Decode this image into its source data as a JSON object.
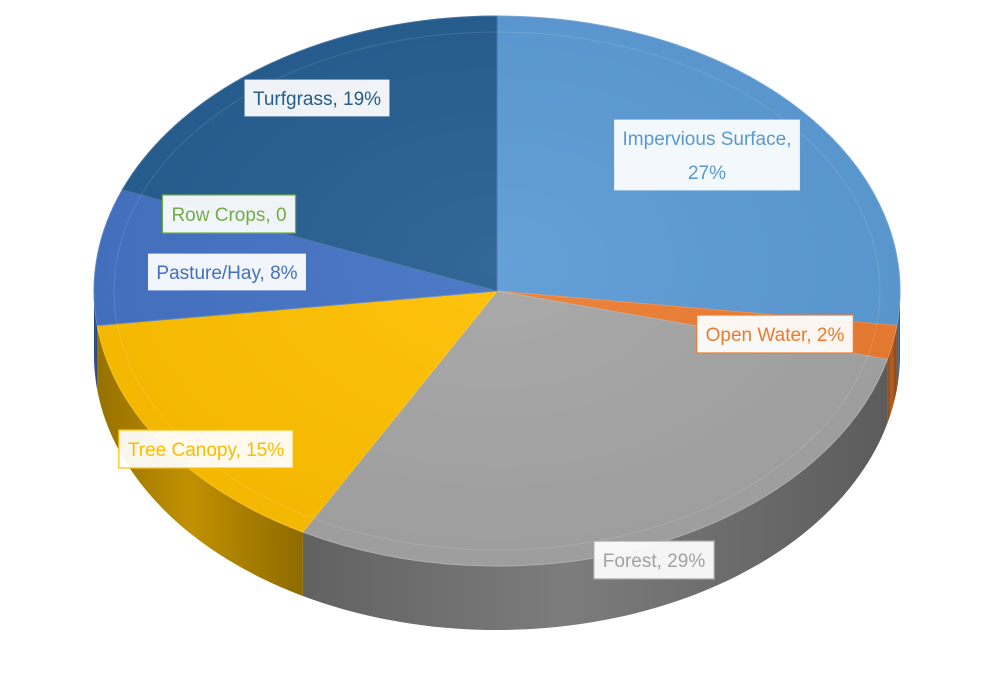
{
  "chart_data": {
    "type": "pie",
    "style": "3d",
    "legend": "none",
    "slices": [
      {
        "label": "Impervious Surface",
        "value": 27,
        "display": "Impervious Surface, 27%",
        "display_lines": [
          "Impervious Surface,",
          "27%"
        ],
        "color": "#5b9bd5"
      },
      {
        "label": "Open Water",
        "value": 2,
        "display": "Open Water, 2%",
        "display_lines": [
          "Open Water, 2%"
        ],
        "color": "#ed7d31"
      },
      {
        "label": "Forest",
        "value": 29,
        "display": "Forest, 29%",
        "display_lines": [
          "Forest, 29%"
        ],
        "color": "#a5a5a5"
      },
      {
        "label": "Tree Canopy",
        "value": 15,
        "display": "Tree Canopy, 15%",
        "display_lines": [
          "Tree Canopy, 15%"
        ],
        "color": "#ffc000"
      },
      {
        "label": "Pasture/Hay",
        "value": 8,
        "display": "Pasture/Hay, 8%",
        "display_lines": [
          "Pasture/Hay, 8%"
        ],
        "color": "#4472c4"
      },
      {
        "label": "Row Crops",
        "value": 0,
        "display": "Row Crops, 0",
        "display_lines": [
          "Row Crops, 0"
        ],
        "color": "#70ad47"
      },
      {
        "label": "Turfgrass",
        "value": 19,
        "display": "Turfgrass, 19%",
        "display_lines": [
          "Turfgrass, 19%"
        ],
        "color": "#255e91"
      }
    ]
  }
}
